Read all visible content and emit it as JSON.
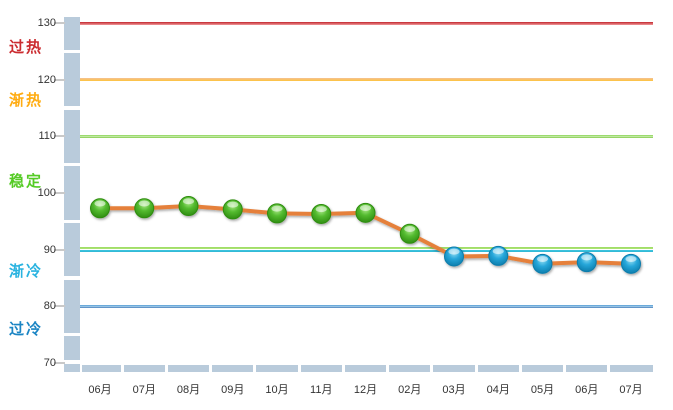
{
  "chart_data": {
    "type": "line",
    "title": "",
    "categories": [
      "06月",
      "07月",
      "08月",
      "09月",
      "10月",
      "11月",
      "12月",
      "02月",
      "03月",
      "04月",
      "05月",
      "06月",
      "07月"
    ],
    "values": [
      97.3,
      97.3,
      97.7,
      97.1,
      96.4,
      96.3,
      96.5,
      92.8,
      88.8,
      88.9,
      87.5,
      87.8,
      87.5
    ],
    "marker_zones": [
      "stable",
      "stable",
      "stable",
      "stable",
      "stable",
      "stable",
      "stable",
      "stable",
      "cooling",
      "cooling",
      "cooling",
      "cooling",
      "cooling"
    ],
    "ylim": [
      70,
      130
    ],
    "y_ticks": [
      130,
      120,
      110,
      100,
      90,
      80,
      70
    ],
    "legend": "none",
    "grid": "horizontal zone-threshold lines only",
    "line_color": "#e5803a",
    "marker_colors": {
      "stable": "#54bb30",
      "cooling": "#27a7da"
    },
    "axis_band_color": "#b9cbdb",
    "zones": [
      {
        "label": "过热",
        "color": "#cb2c30",
        "range": [
          120,
          130
        ],
        "label_at": 126.1
      },
      {
        "label": "渐热",
        "color": "#ffac12",
        "range": [
          110,
          120
        ],
        "label_at": 116.8
      },
      {
        "label": "稳定",
        "color": "#55cb25",
        "range": [
          90,
          110
        ],
        "label_at": 102.4
      },
      {
        "label": "渐冷",
        "color": "#2ab3e0",
        "range": [
          80,
          90
        ],
        "label_at": 86.6
      },
      {
        "label": "过冷",
        "color": "#1b85c4",
        "range": [
          70,
          80
        ],
        "label_at": 76.4
      }
    ],
    "threshold_lines": [
      {
        "value": 130,
        "gradient": [
          "#c2252c",
          "#f09b9b"
        ]
      },
      {
        "value": 120,
        "gradient": [
          "#f5c295",
          "#fec33e"
        ]
      },
      {
        "value": 110,
        "gradient": [
          "#84d14d",
          "#ccefb3",
          "#7cc73f"
        ]
      },
      {
        "value": 90,
        "gradient": [
          "#9cdc63",
          "#aee476"
        ],
        "pair": "top"
      },
      {
        "value": 90,
        "gradient": [
          "#3fc6e0",
          "#2fb6d4"
        ],
        "pair": "bottom"
      },
      {
        "value": 80,
        "gradient": [
          "#4e97d2",
          "#a6cfeb",
          "#4178b7"
        ]
      }
    ]
  }
}
